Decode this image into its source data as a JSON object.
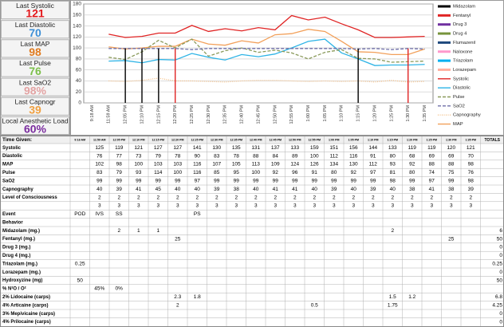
{
  "panel": [
    {
      "label": "Last Systolic",
      "value": 121,
      "color": "#e3191c"
    },
    {
      "label": "Last Diastolic",
      "value": 70,
      "color": "#3d8fd6"
    },
    {
      "label": "Last MAP",
      "value": 98,
      "color": "#e07b1f"
    },
    {
      "label": "Last Pulse",
      "value": 76,
      "color": "#7cbf4a"
    },
    {
      "label": "Last SaO2",
      "value": "98%",
      "color": "#e3a3a3"
    },
    {
      "label": "Last Capnogr",
      "value": 39,
      "color": "#f0a040"
    },
    {
      "label": "Local Anesthetic Load",
      "value": "60%",
      "color": "#7a2c9e"
    }
  ],
  "chart_data": {
    "type": "line",
    "x": [
      "9:18 AM",
      "11:59 AM",
      "12:05 PM",
      "12:10 PM",
      "12:15 PM",
      "12:20 PM",
      "12:25 PM",
      "12:30 PM",
      "12:35 PM",
      "12:40 PM",
      "12:45 PM",
      "12:50 PM",
      "12:55 PM",
      "1:00 PM",
      "1:05 PM",
      "1:10 PM",
      "1:15 PM",
      "1:20 PM",
      "1:25 PM",
      "1:30 PM",
      "1:35 PM"
    ],
    "ylim": [
      0,
      180
    ],
    "yticks": [
      0,
      20,
      40,
      60,
      80,
      100,
      120,
      140,
      160,
      180
    ],
    "grid": true,
    "series": [
      {
        "name": "Systolic",
        "color": "#e02424",
        "style": "solid",
        "values": [
          null,
          125,
          119,
          121,
          127,
          127,
          141,
          130,
          135,
          131,
          137,
          133,
          159,
          151,
          156,
          144,
          133,
          119,
          119,
          120,
          121
        ]
      },
      {
        "name": "Diastolic",
        "color": "#2fb4e6",
        "style": "solid",
        "values": [
          null,
          76,
          77,
          73,
          79,
          78,
          90,
          83,
          78,
          88,
          84,
          89,
          100,
          112,
          116,
          91,
          80,
          68,
          69,
          69,
          70
        ]
      },
      {
        "name": "MAP",
        "color": "#f2a05a",
        "style": "solid",
        "values": [
          null,
          102,
          98,
          100,
          103,
          103,
          116,
          107,
          105,
          113,
          109,
          124,
          126,
          134,
          130,
          112,
          93,
          92,
          88,
          88,
          98
        ]
      },
      {
        "name": "Pulse",
        "color": "#8a9a5b",
        "style": "dashed",
        "values": [
          null,
          83,
          79,
          93,
          114,
          100,
          116,
          85,
          95,
          100,
          92,
          96,
          91,
          80,
          92,
          97,
          81,
          80,
          74,
          75,
          76
        ]
      },
      {
        "name": "SaO2",
        "color": "#6f6fa8",
        "style": "dashed",
        "values": [
          null,
          99,
          99,
          99,
          99,
          99,
          97,
          99,
          99,
          99,
          99,
          99,
          99,
          99,
          99,
          99,
          98,
          99,
          97,
          99,
          98
        ]
      },
      {
        "name": "Capnography",
        "color": "#f5c088",
        "style": "dotted",
        "values": [
          null,
          40,
          39,
          41,
          45,
          40,
          40,
          39,
          38,
          40,
          41,
          41,
          40,
          39,
          40,
          39,
          40,
          38,
          41,
          38,
          39
        ]
      }
    ],
    "drugs": [
      {
        "name": "Midazolam",
        "color": "#000000"
      },
      {
        "name": "Fentanyl",
        "color": "#e02424"
      },
      {
        "name": "Drug 3",
        "color": "#7030a0"
      },
      {
        "name": "Drug 4",
        "color": "#77933c"
      },
      {
        "name": "Flumazenil",
        "color": "#1f497d"
      },
      {
        "name": "Naloxone",
        "color": "#ff99cc"
      },
      {
        "name": "Triazolam",
        "color": "#00b0f0"
      },
      {
        "name": "Lorazepam",
        "color": "#ffb0a0"
      }
    ]
  },
  "table": {
    "corner": "Time Given:",
    "totals": "TOTALS",
    "rows": [
      {
        "label": "Level of Consciousness",
        "values": [
          null,
          2,
          2,
          2,
          2,
          2,
          2,
          2,
          2,
          2,
          2,
          2,
          2,
          2,
          2,
          2,
          2,
          2,
          2,
          2,
          2
        ]
      },
      {
        "values": [
          null,
          3,
          3,
          3,
          3,
          3,
          3,
          3,
          3,
          3,
          3,
          3,
          3,
          3,
          3,
          3,
          3,
          3,
          3,
          3,
          3
        ]
      },
      {
        "label": "Event",
        "values": [
          "POD",
          "IVS",
          "SS",
          null,
          null,
          null,
          "PS",
          null,
          null,
          null,
          null,
          null,
          null,
          null,
          null,
          null,
          null,
          null,
          null,
          null,
          null
        ]
      },
      {
        "label": "Behavior"
      },
      {
        "label": "Midazolam (mg.)",
        "values": [
          null,
          null,
          2,
          1,
          1,
          null,
          null,
          null,
          null,
          null,
          null,
          null,
          null,
          null,
          null,
          null,
          2,
          null,
          null,
          null,
          null
        ],
        "total": 6
      },
      {
        "label": "Fentanyl (mg.)",
        "values": [
          null,
          null,
          null,
          null,
          null,
          25,
          null,
          null,
          null,
          null,
          null,
          null,
          null,
          null,
          null,
          null,
          null,
          null,
          null,
          25,
          null
        ],
        "total": 50
      },
      {
        "label": "Drug 3 (mg.)",
        "total": 0
      },
      {
        "label": "Drug 4 (mg.)",
        "total": 0
      },
      {
        "label": "Triazolam (mg.)",
        "values": [
          0.25,
          null,
          null,
          null,
          null,
          null,
          null,
          null,
          null,
          null,
          null,
          null,
          null,
          null,
          null,
          null,
          null,
          null,
          null,
          null,
          null
        ],
        "total": 0.25
      },
      {
        "label": "Lorazepam (mg.)",
        "total": 0
      },
      {
        "label": "Hydroxyzine (mg)",
        "values": [
          50,
          null,
          null,
          null,
          null,
          null,
          null,
          null,
          null,
          null,
          null,
          null,
          null,
          null,
          null,
          null,
          null,
          null,
          null,
          null,
          null
        ],
        "total": 50
      },
      {
        "label": "% N²O / O²",
        "values": [
          null,
          "45%",
          "0%",
          null,
          null,
          null,
          null,
          null,
          null,
          null,
          null,
          null,
          null,
          null,
          null,
          null,
          null,
          null,
          null,
          null,
          null
        ]
      },
      {
        "label": "2% Lidocaine (carps)",
        "values": [
          null,
          null,
          null,
          null,
          null,
          2.3,
          1.8,
          null,
          null,
          null,
          null,
          null,
          null,
          null,
          null,
          null,
          1.5,
          1.2,
          null,
          null,
          null
        ],
        "total": 6.8
      },
      {
        "label": "4% Articaine (carps)",
        "values": [
          null,
          null,
          null,
          null,
          null,
          2,
          null,
          null,
          null,
          null,
          null,
          null,
          0.5,
          null,
          null,
          null,
          1.75,
          null,
          null,
          null,
          null
        ],
        "total": 4.25
      },
      {
        "label": "3% Mepivicaine (carps)",
        "total": 0
      },
      {
        "label": "4% Prilocaine (carps)",
        "total": 0
      }
    ]
  }
}
